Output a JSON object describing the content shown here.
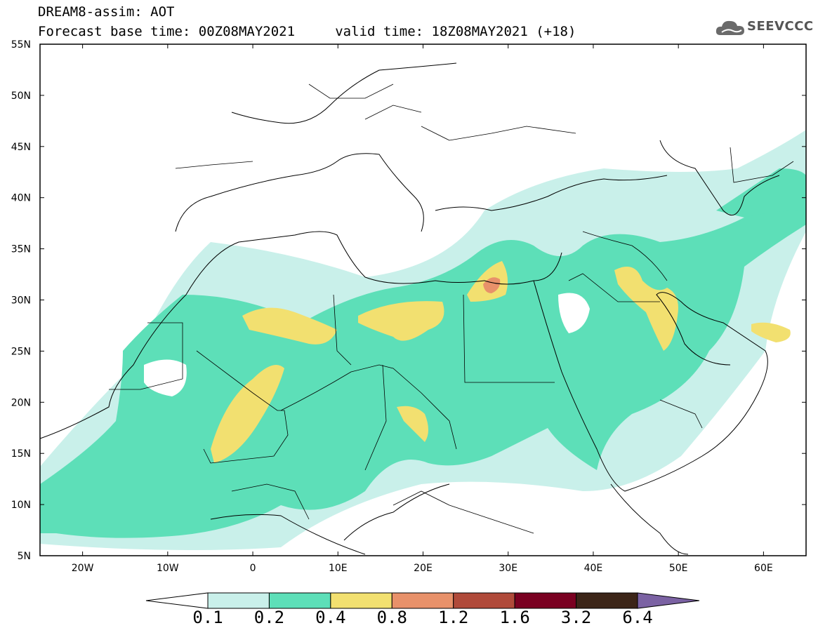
{
  "header": {
    "title_line1": "DREAM8-assim: AOT",
    "title_line2": "Forecast base time: 00Z08MAY2021     valid time: 18Z08MAY2021 (+18)",
    "logo_text": "SEEVCCC",
    "logo_icon": "cloud-logo-icon"
  },
  "map": {
    "lat_ticks": [
      "55N",
      "50N",
      "45N",
      "40N",
      "35N",
      "30N",
      "25N",
      "20N",
      "15N",
      "10N",
      "5N"
    ],
    "lon_ticks": [
      "20W",
      "10W",
      "0",
      "10E",
      "20E",
      "30E",
      "40E",
      "50E",
      "60E"
    ],
    "lat_range": [
      5,
      55
    ],
    "lon_range": [
      -25,
      65
    ]
  },
  "legend": {
    "values": [
      "0.1",
      "0.2",
      "0.4",
      "0.8",
      "1.2",
      "1.6",
      "3.2",
      "6.4"
    ],
    "colors": [
      "#ffffff",
      "#c9f0ea",
      "#5ddfb8",
      "#f2e070",
      "#e8916a",
      "#b04a3a",
      "#7a0021",
      "#3c2518",
      "#7b62a3"
    ]
  }
}
